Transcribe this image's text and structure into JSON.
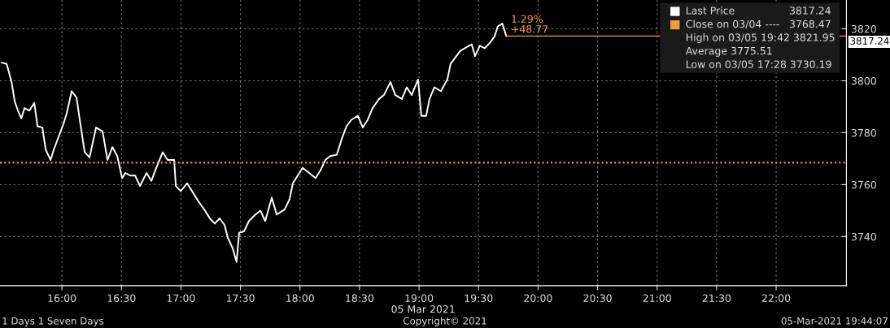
{
  "chart_data": {
    "type": "line",
    "x": [
      15.495,
      15.536,
      15.577,
      15.604,
      15.631,
      15.659,
      15.686,
      15.727,
      15.768,
      15.795,
      15.836,
      15.864,
      15.905,
      15.932,
      15.973,
      16.014,
      16.041,
      16.082,
      16.123,
      16.15,
      16.191,
      16.232,
      16.287,
      16.342,
      16.383,
      16.424,
      16.465,
      16.506,
      16.533,
      16.574,
      16.615,
      16.656,
      16.711,
      16.752,
      16.793,
      16.847,
      16.888,
      16.943,
      16.957,
      16.998,
      17.052,
      17.107,
      17.148,
      17.202,
      17.243,
      17.284,
      17.325,
      17.366,
      17.394,
      17.435,
      17.467,
      17.489,
      17.53,
      17.571,
      17.626,
      17.667,
      17.708,
      17.763,
      17.804,
      17.872,
      17.913,
      17.94,
      17.981,
      18.022,
      18.077,
      18.131,
      18.172,
      18.213,
      18.254,
      18.309,
      18.35,
      18.391,
      18.432,
      18.487,
      18.528,
      18.569,
      18.61,
      18.664,
      18.705,
      18.76,
      18.801,
      18.856,
      18.897,
      18.938,
      18.992,
      19.019,
      19.06,
      19.088,
      19.129,
      19.184,
      19.238,
      19.265,
      19.306,
      19.347,
      19.402,
      19.443,
      19.47,
      19.511,
      19.552,
      19.593,
      19.634,
      19.662,
      19.7,
      19.733
    ],
    "series": [
      {
        "name": "Last Price",
        "color": "#ffffff",
        "values": [
          3807.0,
          3806.5,
          3799.5,
          3792.0,
          3788.5,
          3785.5,
          3789.5,
          3788.5,
          3791.5,
          3782.5,
          3782.0,
          3773.5,
          3769.5,
          3773.5,
          3778.5,
          3783.5,
          3787.5,
          3796.0,
          3793.5,
          3785.0,
          3772.5,
          3770.5,
          3782.0,
          3780.5,
          3769.5,
          3774.5,
          3771.0,
          3762.5,
          3764.5,
          3763.5,
          3763.5,
          3759.5,
          3764.5,
          3761.5,
          3766.5,
          3772.5,
          3769.5,
          3769.5,
          3759.5,
          3757.5,
          3760.5,
          3756.5,
          3753.5,
          3750.0,
          3747.0,
          3745.0,
          3747.0,
          3744.5,
          3739.5,
          3735.5,
          3730.2,
          3741.5,
          3742.0,
          3746.0,
          3748.5,
          3750.0,
          3746.0,
          3755.0,
          3748.5,
          3750.5,
          3754.5,
          3760.5,
          3763.5,
          3766.5,
          3764.5,
          3762.5,
          3765.5,
          3769.5,
          3771.0,
          3771.5,
          3777.5,
          3782.5,
          3785.0,
          3786.5,
          3782.0,
          3785.0,
          3789.5,
          3793.0,
          3794.5,
          3799.5,
          3794.5,
          3793.0,
          3797.5,
          3794.5,
          3800.5,
          3786.5,
          3786.5,
          3793.0,
          3797.5,
          3796.0,
          3800.5,
          3806.5,
          3809.0,
          3811.5,
          3813.0,
          3814.0,
          3809.5,
          3813.5,
          3812.5,
          3814.5,
          3817.0,
          3821.0,
          3822.0,
          3817.2
        ]
      }
    ],
    "ref_lines": [
      {
        "axis": "y",
        "value": 3768.47,
        "label": "Close on 03/04 ----",
        "color": "#f39c32",
        "line_style": "dotted"
      },
      {
        "axis": "y",
        "value": 3817.24,
        "color": "#f39c32",
        "line_style": "solid"
      }
    ],
    "xlim": [
      15.48,
      22.59
    ],
    "ylim": [
      3721.1,
      3831.1
    ],
    "xticks": [
      {
        "value": 16,
        "label": "16:00"
      },
      {
        "value": 16.5,
        "label": "16:30"
      },
      {
        "value": 17,
        "label": "17:00"
      },
      {
        "value": 17.5,
        "label": "17:30"
      },
      {
        "value": 18,
        "label": "18:00"
      },
      {
        "value": 18.5,
        "label": "18:30"
      },
      {
        "value": 19,
        "label": "19:00"
      },
      {
        "value": 19.5,
        "label": "19:30"
      },
      {
        "value": 20,
        "label": "20:00"
      },
      {
        "value": 20.5,
        "label": "20:30"
      },
      {
        "value": 21,
        "label": "21:00"
      },
      {
        "value": 21.5,
        "label": "21:30"
      },
      {
        "value": 22,
        "label": "22:00"
      }
    ],
    "yticks": [
      3740,
      3760,
      3780,
      3800,
      3820
    ],
    "xlabel": "05 Mar 2021",
    "grid": true,
    "legend": "top right",
    "marker": "none",
    "line_style": "solid",
    "annotations": [
      "3817.24",
      "3768.47",
      "High on 03/05 19:42 3821.95",
      "Average 3775.51",
      "Low on 03/05 17:28 3730.19",
      "1.29%",
      "+48.77",
      "3817.24",
      "1 Days 1 Seven Days",
      "Copyright© 2021",
      "05-Mar-2021 19:44:07"
    ]
  }
}
